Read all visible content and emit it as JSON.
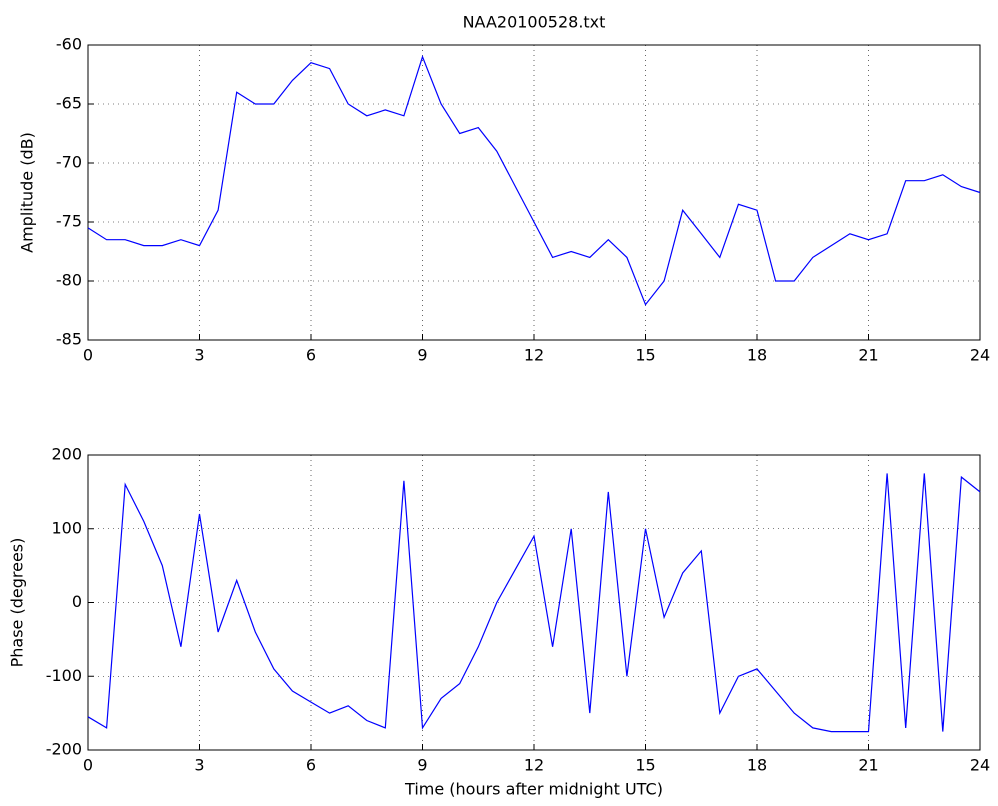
{
  "chart_data": [
    {
      "type": "line",
      "title": "NAA20100528.txt",
      "ylabel": "Amplitude (dB)",
      "x": [
        0,
        0.5,
        1,
        1.5,
        2,
        2.5,
        3,
        3.5,
        4,
        4.5,
        5,
        5.5,
        6,
        6.5,
        7,
        7.5,
        8,
        8.5,
        9,
        9.5,
        10,
        10.5,
        11,
        11.5,
        12,
        12.5,
        13,
        13.5,
        14,
        14.5,
        15,
        15.5,
        16,
        16.5,
        17,
        17.5,
        18,
        18.5,
        19,
        19.5,
        20,
        20.5,
        21,
        21.5,
        22,
        22.5,
        23,
        23.5,
        24
      ],
      "series": [
        {
          "color": "#0000ff",
          "values": [
            -75.5,
            -76.5,
            -76.5,
            -77,
            -77,
            -76.5,
            -77,
            -74,
            -64,
            -65,
            -65,
            -63,
            -61.5,
            -62,
            -65,
            -66,
            -65.5,
            -66,
            -61,
            -65,
            -67.5,
            -67,
            -69,
            -72,
            -75,
            -78,
            -77.5,
            -78,
            -76.5,
            -78,
            -82,
            -80,
            -74,
            -76,
            -78,
            -73.5,
            -74,
            -80,
            -80,
            -78,
            -77,
            -76,
            -76.5,
            -76,
            -71.5,
            -71.5,
            -71,
            -72,
            -72.5
          ]
        }
      ],
      "xlim": [
        0,
        24
      ],
      "xticks": [
        0,
        3,
        6,
        9,
        12,
        15,
        18,
        21,
        24
      ],
      "ylim": [
        -85,
        -60
      ],
      "yticks": [
        -85,
        -80,
        -75,
        -70,
        -65,
        -60
      ],
      "grid": true
    },
    {
      "type": "line",
      "ylabel": "Phase (degrees)",
      "xlabel": "Time (hours after midnight UTC)",
      "x": [
        0,
        0.5,
        1,
        1.5,
        2,
        2.5,
        3,
        3.5,
        4,
        4.5,
        5,
        5.5,
        6,
        6.5,
        7,
        7.5,
        8,
        8.5,
        9,
        9.5,
        10,
        10.5,
        11,
        11.5,
        12,
        12.5,
        13,
        13.5,
        14,
        14.5,
        15,
        15.5,
        16,
        16.5,
        17,
        17.5,
        18,
        18.5,
        19,
        19.5,
        20,
        20.5,
        21,
        21.5,
        22,
        22.5,
        23,
        23.5,
        24
      ],
      "series": [
        {
          "color": "#0000ff",
          "values": [
            -155,
            -170,
            160,
            110,
            50,
            -60,
            120,
            -40,
            30,
            -40,
            -90,
            -120,
            -135,
            -150,
            -140,
            -160,
            -170,
            165,
            -170,
            -130,
            -110,
            -60,
            0,
            45,
            90,
            -60,
            100,
            -150,
            150,
            -100,
            100,
            -20,
            40,
            70,
            -150,
            -100,
            -90,
            -120,
            -150,
            -170,
            -175,
            -175,
            -175,
            175,
            -170,
            175,
            -175,
            170,
            150
          ]
        }
      ],
      "xlim": [
        0,
        24
      ],
      "xticks": [
        0,
        3,
        6,
        9,
        12,
        15,
        18,
        21,
        24
      ],
      "ylim": [
        -200,
        200
      ],
      "yticks": [
        -200,
        -100,
        0,
        100,
        200
      ],
      "grid": true
    }
  ]
}
